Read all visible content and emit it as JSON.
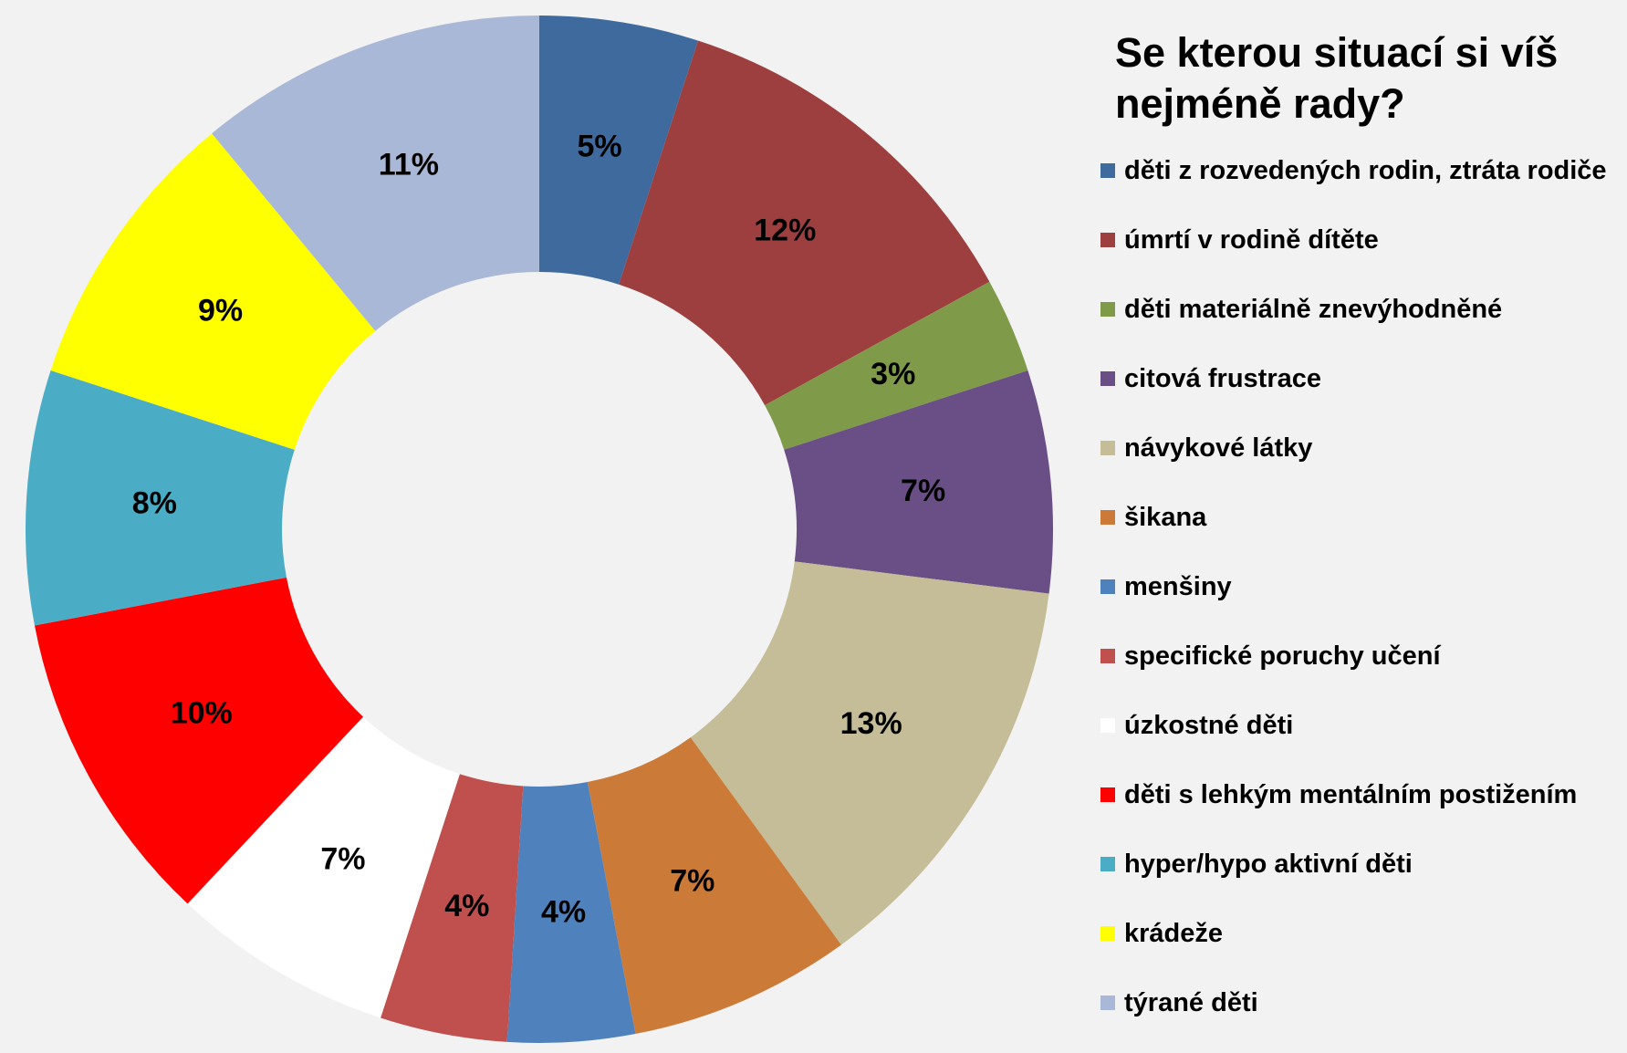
{
  "chart_data": {
    "type": "donut",
    "title": "Se kterou situací si víš nejméně rady?",
    "categories": [
      "děti z rozvedených rodin, ztráta rodiče",
      "úmrtí v rodině dítěte",
      "děti materiálně znevýhodněné",
      "citová frustrace",
      "návykové látky",
      "šikana",
      "menšiny",
      "specifické poruchy učení",
      "úzkostné děti",
      "děti s lehkým mentálním postižením",
      "hyper/hypo aktivní děti",
      "krádeže",
      "týrané děti"
    ],
    "values": [
      5,
      12,
      3,
      7,
      13,
      7,
      4,
      4,
      7,
      10,
      8,
      9,
      11
    ],
    "value_labels": [
      "5%",
      "12%",
      "3%",
      "7%",
      "13%",
      "7%",
      "4%",
      "4%",
      "7%",
      "10%",
      "8%",
      "9%",
      "11%"
    ],
    "colors": [
      "#3f6a9e",
      "#9e3f3f",
      "#7f9a48",
      "#6a4f87",
      "#c4bd97",
      "#cc7a38",
      "#4f81bd",
      "#c0504d",
      "#ffffff",
      "#ff0000",
      "#4bacc6",
      "#ffff00",
      "#a9b8d6"
    ],
    "legend": "right"
  }
}
